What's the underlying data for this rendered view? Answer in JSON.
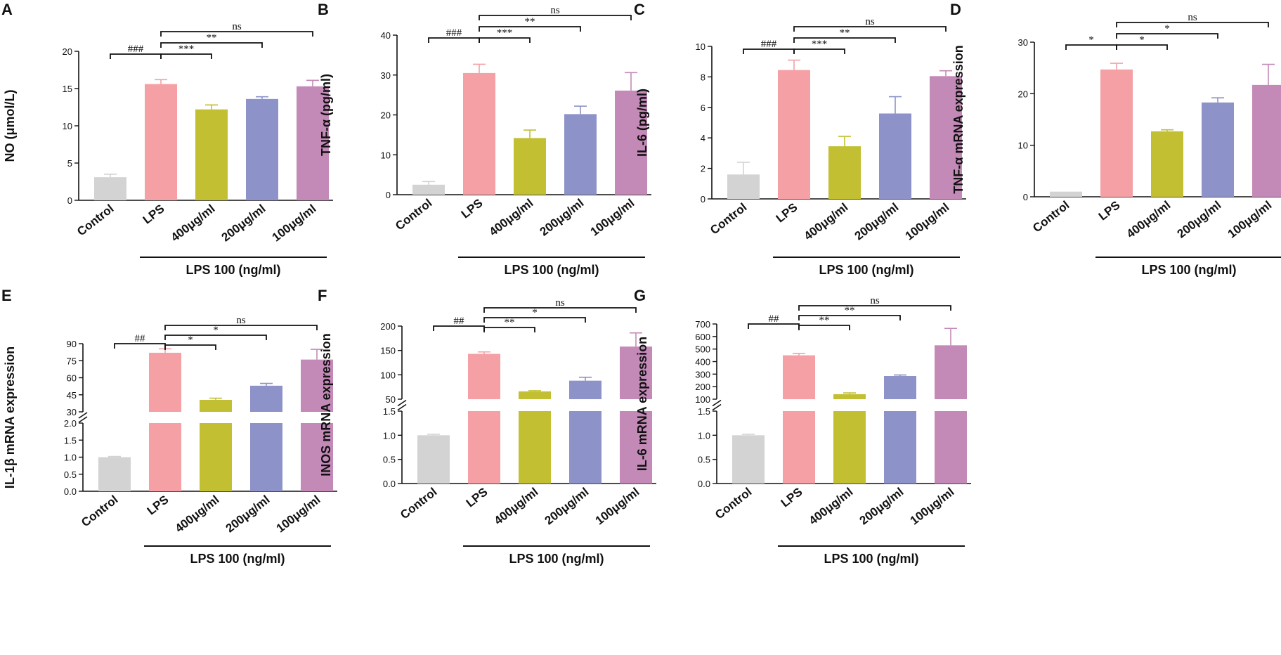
{
  "figure": {
    "group_label": "LPS 100 (ng/ml)",
    "categories": [
      "Control",
      "LPS",
      "400μg/ml",
      "200μg/ml",
      "100μg/ml"
    ],
    "colors": [
      "#d3d3d3",
      "#f4a0a5",
      "#c2bf33",
      "#8d93c8",
      "#c38ab8"
    ]
  },
  "chart_data": [
    {
      "panel": "A",
      "type": "bar",
      "ylabel": "NO (μmol/L)",
      "categories": [
        "Control",
        "LPS",
        "400μg/ml",
        "200μg/ml",
        "100μg/ml"
      ],
      "values": [
        3.1,
        15.6,
        12.2,
        13.6,
        15.3
      ],
      "errors": [
        0.4,
        0.6,
        0.6,
        0.3,
        0.8
      ],
      "ylim": [
        0,
        20
      ],
      "yticks": [
        0,
        5,
        10,
        15,
        20
      ],
      "significance": [
        {
          "from": 0,
          "to": 1,
          "label": "###"
        },
        {
          "from": 1,
          "to": 2,
          "label": "***"
        },
        {
          "from": 1,
          "to": 3,
          "label": "**"
        },
        {
          "from": 1,
          "to": 4,
          "label": "ns"
        }
      ]
    },
    {
      "panel": "B",
      "type": "bar",
      "ylabel": "TNF-α (pg/ml)",
      "categories": [
        "Control",
        "LPS",
        "400μg/ml",
        "200μg/ml",
        "100μg/ml"
      ],
      "values": [
        2.5,
        30.5,
        14.2,
        20.2,
        26.1
      ],
      "errors": [
        0.8,
        2.2,
        2.0,
        2.0,
        4.5
      ],
      "ylim": [
        0,
        40
      ],
      "yticks": [
        0,
        10,
        20,
        30,
        40
      ],
      "significance": [
        {
          "from": 0,
          "to": 1,
          "label": "###"
        },
        {
          "from": 1,
          "to": 2,
          "label": "***"
        },
        {
          "from": 1,
          "to": 3,
          "label": "**"
        },
        {
          "from": 1,
          "to": 4,
          "label": "ns"
        }
      ]
    },
    {
      "panel": "C",
      "type": "bar",
      "ylabel": "IL-6 (pg/ml)",
      "categories": [
        "Control",
        "LPS",
        "400μg/ml",
        "200μg/ml",
        "100μg/ml"
      ],
      "values": [
        1.6,
        8.45,
        3.45,
        5.6,
        8.05
      ],
      "errors": [
        0.8,
        0.65,
        0.65,
        1.1,
        0.35
      ],
      "ylim": [
        0,
        10
      ],
      "yticks": [
        0,
        2,
        4,
        6,
        8,
        10
      ],
      "significance": [
        {
          "from": 0,
          "to": 1,
          "label": "###"
        },
        {
          "from": 1,
          "to": 2,
          "label": "***"
        },
        {
          "from": 1,
          "to": 3,
          "label": "**"
        },
        {
          "from": 1,
          "to": 4,
          "label": "ns"
        }
      ]
    },
    {
      "panel": "D",
      "type": "bar",
      "ylabel": "TNF-α mRNA expression",
      "categories": [
        "Control",
        "LPS",
        "400μg/ml",
        "200μg/ml",
        "100μg/ml"
      ],
      "values": [
        1.0,
        24.7,
        12.7,
        18.3,
        21.7
      ],
      "errors": [
        0.1,
        1.2,
        0.3,
        0.9,
        4.0
      ],
      "ylim": [
        0,
        30
      ],
      "yticks": [
        0,
        10,
        20,
        30
      ],
      "significance": [
        {
          "from": 0,
          "to": 1,
          "label": "*"
        },
        {
          "from": 1,
          "to": 2,
          "label": "*"
        },
        {
          "from": 1,
          "to": 3,
          "label": "*"
        },
        {
          "from": 1,
          "to": 4,
          "label": "ns"
        }
      ]
    },
    {
      "panel": "E",
      "type": "bar",
      "ylabel": "IL-1β mRNA expression",
      "categories": [
        "Control",
        "LPS",
        "400μg/ml",
        "200μg/ml",
        "100μg/ml"
      ],
      "values": [
        1.0,
        82.0,
        40.5,
        53.0,
        76.0
      ],
      "errors": [
        0.02,
        3.5,
        1.5,
        2.0,
        9.0
      ],
      "broken_axis": {
        "lower": [
          0,
          2.0
        ],
        "upper": [
          30,
          90
        ]
      },
      "yticks_lower": [
        0.0,
        0.5,
        1.0,
        1.5,
        2.0
      ],
      "yticks_upper": [
        30,
        45,
        60,
        75,
        90
      ],
      "yticklabels_lower": [
        "0.0",
        "0.5",
        "1.0",
        "1.5",
        "2.0"
      ],
      "yticklabels_upper": [
        "30",
        "45",
        "60",
        "75",
        "90"
      ],
      "significance": [
        {
          "from": 0,
          "to": 1,
          "label": "##"
        },
        {
          "from": 1,
          "to": 2,
          "label": "*"
        },
        {
          "from": 1,
          "to": 3,
          "label": "*"
        },
        {
          "from": 1,
          "to": 4,
          "label": "ns"
        }
      ]
    },
    {
      "panel": "F",
      "type": "bar",
      "ylabel": "INOS mRNA expression",
      "categories": [
        "Control",
        "LPS",
        "400μg/ml",
        "200μg/ml",
        "100μg/ml"
      ],
      "values": [
        1.0,
        143.0,
        66.0,
        88.0,
        158.0
      ],
      "errors": [
        0.02,
        4.0,
        1.5,
        7.0,
        28.0
      ],
      "broken_axis": {
        "lower": [
          0,
          1.5
        ],
        "upper": [
          50,
          200
        ]
      },
      "yticks_lower": [
        0.0,
        0.5,
        1.0,
        1.5
      ],
      "yticks_upper": [
        50,
        100,
        150,
        200
      ],
      "yticklabels_lower": [
        "0.0",
        "0.5",
        "1.0",
        "1.5"
      ],
      "yticklabels_upper": [
        "50",
        "100",
        "150",
        "200"
      ],
      "significance": [
        {
          "from": 0,
          "to": 1,
          "label": "##"
        },
        {
          "from": 1,
          "to": 2,
          "label": "**"
        },
        {
          "from": 1,
          "to": 3,
          "label": "*"
        },
        {
          "from": 1,
          "to": 4,
          "label": "ns"
        }
      ]
    },
    {
      "panel": "G",
      "type": "bar",
      "ylabel": "IL-6 mRNA expression",
      "categories": [
        "Control",
        "LPS",
        "400μg/ml",
        "200μg/ml",
        "100μg/ml"
      ],
      "values": [
        1.0,
        450.0,
        140.0,
        285.0,
        530.0
      ],
      "errors": [
        0.02,
        15.0,
        10.0,
        8.0,
        135.0
      ],
      "broken_axis": {
        "lower": [
          0,
          1.5
        ],
        "upper": [
          100,
          700
        ]
      },
      "yticks_lower": [
        0.0,
        0.5,
        1.0,
        1.5
      ],
      "yticks_upper": [
        100,
        200,
        300,
        400,
        500,
        600,
        700
      ],
      "yticklabels_lower": [
        "0.0",
        "0.5",
        "1.0",
        "1.5"
      ],
      "yticklabels_upper": [
        "100",
        "200",
        "300",
        "400",
        "500",
        "600",
        "700"
      ],
      "significance": [
        {
          "from": 0,
          "to": 1,
          "label": "##"
        },
        {
          "from": 1,
          "to": 2,
          "label": "**"
        },
        {
          "from": 1,
          "to": 3,
          "label": "**"
        },
        {
          "from": 1,
          "to": 4,
          "label": "ns"
        }
      ]
    }
  ]
}
